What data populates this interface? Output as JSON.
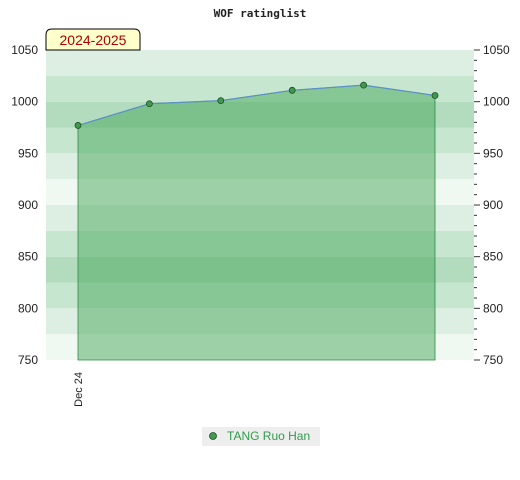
{
  "chart_data": {
    "type": "area",
    "title": "WOF ratinglist",
    "season_label": "2024-2025",
    "ylim": [
      750,
      1050
    ],
    "yticks": [
      750,
      800,
      850,
      900,
      950,
      1000,
      1050
    ],
    "x_tick_labels": [
      "Dec 24"
    ],
    "series": [
      {
        "name": "TANG Ruo Han",
        "values": [
          977,
          998,
          1001,
          1011,
          1016,
          1006
        ]
      }
    ],
    "grid": true,
    "legend_position": "bottom",
    "colors": {
      "line": "#5b8fc9",
      "fill": "#3aa04e",
      "marker": "#3f9a4e",
      "legend_text": "#2e9e4a",
      "season_text": "#b00000",
      "season_bg": "#ffffcc"
    }
  }
}
